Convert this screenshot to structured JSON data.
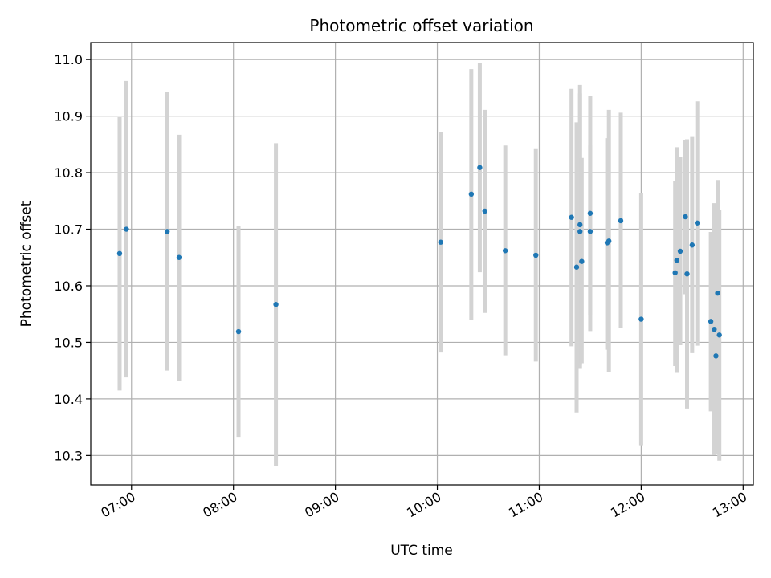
{
  "chart_data": {
    "type": "scatter",
    "title": "Photometric offset variation",
    "xlabel": "UTC time",
    "ylabel": "Photometric offset",
    "x_ticks": [
      "07:00",
      "08:00",
      "09:00",
      "10:00",
      "11:00",
      "12:00",
      "13:00"
    ],
    "y_ticks": [
      "10.3",
      "10.4",
      "10.5",
      "10.6",
      "10.7",
      "10.8",
      "10.9",
      "11.0"
    ],
    "xlim": [
      "06:36",
      "13:06"
    ],
    "ylim": [
      10.248,
      11.03
    ],
    "grid": true,
    "colors": {
      "points": "#1f77b4",
      "errorbars": "#d3d3d3",
      "grid": "#b0b0b0"
    },
    "points": [
      {
        "x": "06:53",
        "y": 10.657,
        "low": 10.415,
        "high": 10.898
      },
      {
        "x": "06:57",
        "y": 10.7,
        "low": 10.438,
        "high": 10.962
      },
      {
        "x": "07:21",
        "y": 10.696,
        "low": 10.45,
        "high": 10.943
      },
      {
        "x": "07:28",
        "y": 10.65,
        "low": 10.432,
        "high": 10.867
      },
      {
        "x": "08:03",
        "y": 10.519,
        "low": 10.333,
        "high": 10.705
      },
      {
        "x": "08:25",
        "y": 10.567,
        "low": 10.281,
        "high": 10.852
      },
      {
        "x": "10:02",
        "y": 10.677,
        "low": 10.482,
        "high": 10.872
      },
      {
        "x": "10:20",
        "y": 10.762,
        "low": 10.54,
        "high": 10.983
      },
      {
        "x": "10:25",
        "y": 10.809,
        "low": 10.624,
        "high": 10.994
      },
      {
        "x": "10:28",
        "y": 10.732,
        "low": 10.552,
        "high": 10.911
      },
      {
        "x": "10:40",
        "y": 10.662,
        "low": 10.477,
        "high": 10.848
      },
      {
        "x": "10:58",
        "y": 10.654,
        "low": 10.466,
        "high": 10.843
      },
      {
        "x": "11:19",
        "y": 10.721,
        "low": 10.493,
        "high": 10.948
      },
      {
        "x": "11:22",
        "y": 10.633,
        "low": 10.376,
        "high": 10.889
      },
      {
        "x": "11:24",
        "y": 10.708,
        "low": 10.46,
        "high": 10.955
      },
      {
        "x": "11:24",
        "y": 10.696,
        "low": 10.453,
        "high": 10.94
      },
      {
        "x": "11:25",
        "y": 10.643,
        "low": 10.463,
        "high": 10.826
      },
      {
        "x": "11:30",
        "y": 10.728,
        "low": 10.52,
        "high": 10.935
      },
      {
        "x": "11:30",
        "y": 10.696,
        "low": 10.548,
        "high": 10.848
      },
      {
        "x": "11:40",
        "y": 10.676,
        "low": 10.487,
        "high": 10.861
      },
      {
        "x": "11:41",
        "y": 10.679,
        "low": 10.448,
        "high": 10.911
      },
      {
        "x": "11:48",
        "y": 10.715,
        "low": 10.525,
        "high": 10.906
      },
      {
        "x": "12:00",
        "y": 10.541,
        "low": 10.318,
        "high": 10.764
      },
      {
        "x": "12:20",
        "y": 10.623,
        "low": 10.458,
        "high": 10.785
      },
      {
        "x": "12:21",
        "y": 10.645,
        "low": 10.446,
        "high": 10.845
      },
      {
        "x": "12:23",
        "y": 10.661,
        "low": 10.495,
        "high": 10.827
      },
      {
        "x": "12:26",
        "y": 10.722,
        "low": 10.585,
        "high": 10.858
      },
      {
        "x": "12:27",
        "y": 10.621,
        "low": 10.383,
        "high": 10.859
      },
      {
        "x": "12:30",
        "y": 10.672,
        "low": 10.481,
        "high": 10.863
      },
      {
        "x": "12:33",
        "y": 10.711,
        "low": 10.494,
        "high": 10.926
      },
      {
        "x": "12:41",
        "y": 10.537,
        "low": 10.378,
        "high": 10.695
      },
      {
        "x": "12:43",
        "y": 10.523,
        "low": 10.301,
        "high": 10.746
      },
      {
        "x": "12:44",
        "y": 10.476,
        "low": 10.302,
        "high": 10.65
      },
      {
        "x": "12:45",
        "y": 10.587,
        "low": 10.386,
        "high": 10.787
      },
      {
        "x": "12:46",
        "y": 10.513,
        "low": 10.291,
        "high": 10.734
      }
    ]
  }
}
